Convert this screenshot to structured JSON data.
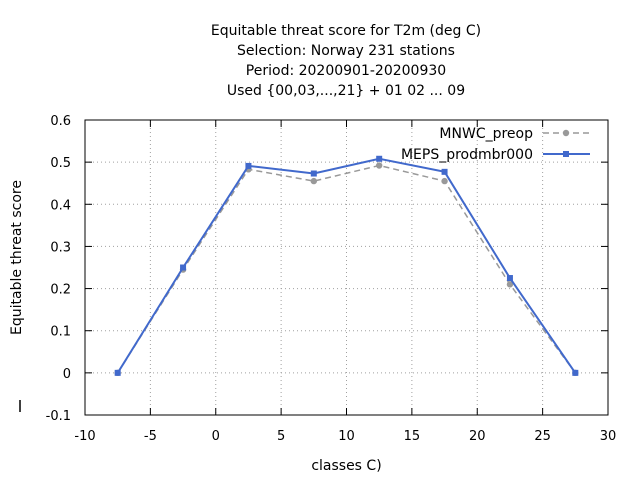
{
  "chart_data": {
    "type": "line",
    "title_lines": [
      "Equitable threat score  for T2m (deg C)",
      "Selection: Norway    231 stations",
      "Period: 20200901-20200930",
      "Used {00,03,...,21} + 01 02 ... 09"
    ],
    "xlabel": "classes C)",
    "ylabel": "Equitable threat score",
    "xlim": [
      -10,
      30
    ],
    "ylim": [
      -0.1,
      0.6
    ],
    "xticks": [
      "-10",
      "-5",
      "0",
      "5",
      "10",
      "15",
      "20",
      "25",
      "30"
    ],
    "yticks": [
      "-0.1",
      "0",
      "0.1",
      "0.2",
      "0.3",
      "0.4",
      "0.5",
      "0.6"
    ],
    "grid": true,
    "legend_position": "top-right",
    "x": [
      -7.5,
      -2.5,
      2.5,
      7.5,
      12.5,
      17.5,
      22.5,
      27.5
    ],
    "series": [
      {
        "name": "MNWC_preop",
        "color": "#999999",
        "dashed": true,
        "values": [
          0.0,
          0.245,
          0.483,
          0.455,
          0.492,
          0.455,
          0.21,
          0.0
        ]
      },
      {
        "name": "MEPS_prodmbr000",
        "color": "#4169cc",
        "dashed": false,
        "values": [
          0.0,
          0.25,
          0.491,
          0.473,
          0.508,
          0.477,
          0.225,
          0.0
        ]
      }
    ]
  }
}
